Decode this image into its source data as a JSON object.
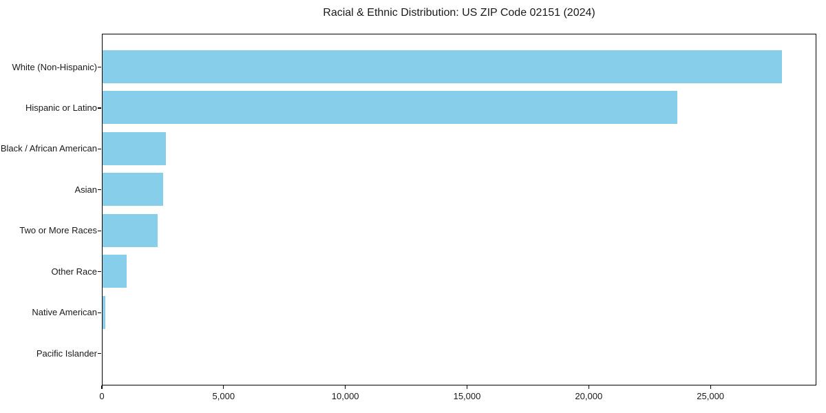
{
  "chart_data": {
    "type": "bar",
    "orientation": "horizontal",
    "title": "Racial & Ethnic Distribution: US ZIP Code 02151 (2024)",
    "categories": [
      "White (Non-Hispanic)",
      "Hispanic or Latino",
      "Black / African American",
      "Asian",
      "Two or More Races",
      "Other Race",
      "Native American",
      "Pacific Islander"
    ],
    "values": [
      27900,
      23600,
      2600,
      2500,
      2250,
      1000,
      110,
      0
    ],
    "xlabel": "",
    "ylabel": "",
    "xlim": [
      0,
      29350
    ],
    "x_ticks": [
      0,
      5000,
      10000,
      15000,
      20000,
      25000
    ],
    "x_tick_labels": [
      "0",
      "5,000",
      "10,000",
      "15,000",
      "20,000",
      "25,000"
    ],
    "bar_color": "#87CEEB",
    "spine_color": "#000000",
    "grid": false,
    "legend": null
  }
}
